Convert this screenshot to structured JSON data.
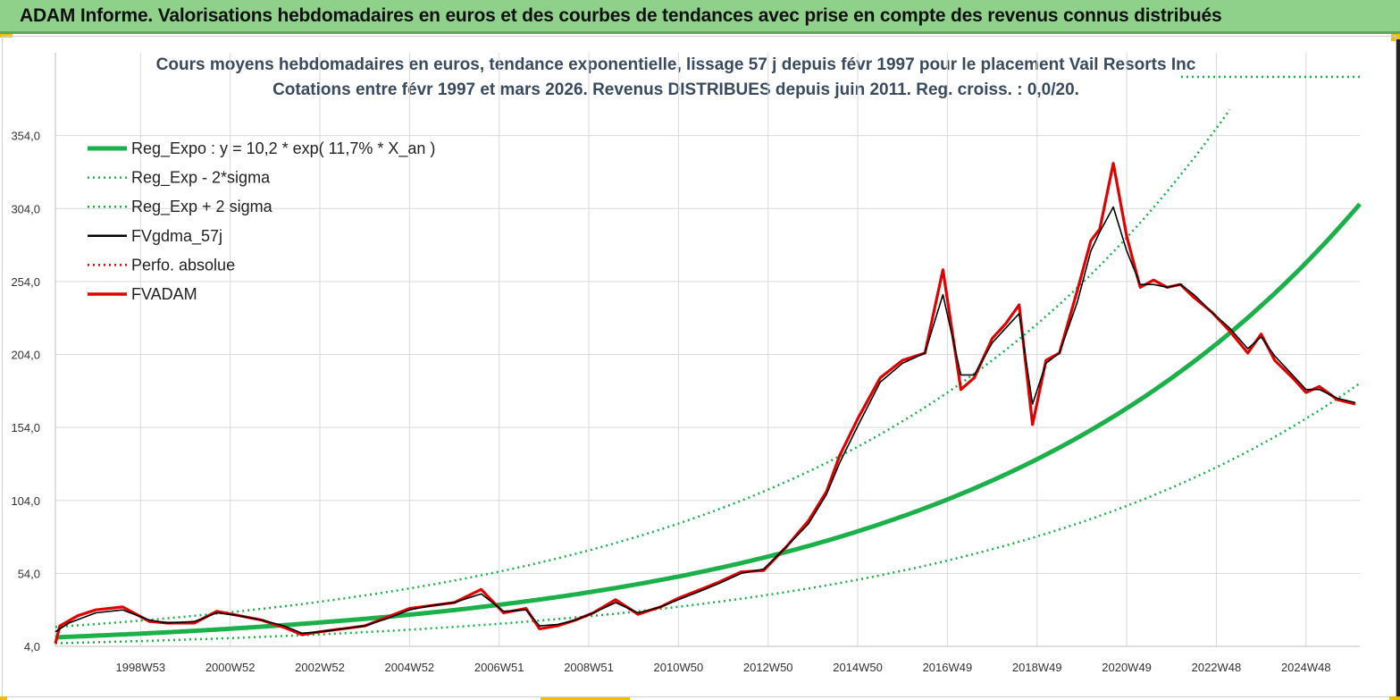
{
  "banner": {
    "title": "ADAM Informe. Valorisations hebdomadaires en euros et des courbes de tendances avec prise en compte des revenus connus distribués"
  },
  "chart_data": {
    "type": "line",
    "title": "Cours moyens hebdomadaires en euros, tendance exponentielle, lissage 57 j depuis févr 1997 pour le placement Vail Resorts Inc",
    "subtitle": "Cotations entre févr 1997 et mars 2026. Revenus DISTRIBUES depuis juin 2011. Reg. croiss. : 0,0/20.",
    "xlabel": "",
    "ylabel": "",
    "xlim": [
      1997.1,
      2026.2
    ],
    "ylim": [
      4,
      374
    ],
    "yticks": [
      4,
      54,
      104,
      154,
      204,
      254,
      304,
      354
    ],
    "ytick_labels": [
      "4,0",
      "54,0",
      "104,0",
      "154,0",
      "204,0",
      "254,0",
      "304,0",
      "354,0"
    ],
    "xticks": [
      1999.0,
      2001.0,
      2003.0,
      2005.0,
      2007.0,
      2009.0,
      2011.0,
      2013.0,
      2015.0,
      2017.0,
      2019.0,
      2021.0,
      2023.0,
      2025.0
    ],
    "xtick_labels": [
      "1998W53",
      "2000W52",
      "2002W52",
      "2004W52",
      "2006W51",
      "2008W51",
      "2010W50",
      "2012W50",
      "2014W50",
      "2016W49",
      "2018W49",
      "2020W49",
      "2022W48",
      "2024W48"
    ],
    "grid": true,
    "legend": [
      {
        "name": "Reg_Expo : y = 10,2 * exp( 11,7% *  X_an )",
        "color": "#1bb04a",
        "style": "thick"
      },
      {
        "name": "Reg_Exp - 2*sigma",
        "color": "#1bb04a",
        "style": "dotted"
      },
      {
        "name": "Reg_Exp + 2 sigma",
        "color": "#1bb04a",
        "style": "dotted"
      },
      {
        "name": "FVgdma_57j",
        "color": "#000000",
        "style": "solid"
      },
      {
        "name": "Perfo. absolue",
        "color": "#e00000",
        "style": "dotted"
      },
      {
        "name": "FVADAM",
        "color": "#e00000",
        "style": "thick"
      }
    ],
    "regression": {
      "a": 10.2,
      "k": 0.117,
      "t0": 1997.1,
      "lower_factor": 0.6,
      "upper_factor": 1.7
    },
    "series": [
      {
        "name": "FVADAM",
        "x": [
          1997.1,
          1997.2,
          1997.6,
          1998.0,
          1998.6,
          1999.2,
          1999.6,
          2000.2,
          2000.7,
          2001.2,
          2001.7,
          2002.2,
          2002.6,
          2003.0,
          2003.5,
          2004.0,
          2004.5,
          2005.0,
          2005.5,
          2006.0,
          2006.6,
          2007.1,
          2007.6,
          2007.9,
          2008.3,
          2008.7,
          2009.1,
          2009.6,
          2010.1,
          2010.6,
          2011.0,
          2011.5,
          2011.9,
          2012.4,
          2012.9,
          2013.4,
          2013.9,
          2014.3,
          2014.6,
          2015.0,
          2015.5,
          2016.0,
          2016.5,
          2016.9,
          2017.3,
          2017.6,
          2018.0,
          2018.3,
          2018.6,
          2018.9,
          2019.2,
          2019.5,
          2019.9,
          2020.2,
          2020.4,
          2020.7,
          2021.0,
          2021.3,
          2021.6,
          2021.9,
          2022.2,
          2022.5,
          2022.9,
          2023.3,
          2023.7,
          2024.0,
          2024.3,
          2024.7,
          2025.0,
          2025.3,
          2025.7,
          2026.1
        ],
        "values": [
          6,
          18,
          25,
          29,
          31,
          21,
          20,
          20,
          28,
          25,
          22,
          17,
          12,
          14,
          16,
          18,
          24,
          30,
          32,
          34,
          43,
          27,
          30,
          16,
          18,
          22,
          27,
          36,
          26,
          31,
          37,
          43,
          48,
          55,
          56,
          72,
          90,
          110,
          135,
          160,
          188,
          200,
          205,
          262,
          180,
          188,
          215,
          225,
          238,
          156,
          200,
          205,
          248,
          282,
          290,
          335,
          285,
          250,
          255,
          250,
          252,
          243,
          233,
          220,
          205,
          218,
          200,
          188,
          178,
          182,
          173,
          170
        ]
      },
      {
        "name": "FVgdma_57j",
        "x": [
          1997.1,
          1997.4,
          1998.0,
          1998.6,
          1999.2,
          1999.6,
          2000.2,
          2000.7,
          2001.2,
          2001.7,
          2002.2,
          2002.6,
          2003.0,
          2003.5,
          2004.0,
          2004.5,
          2005.0,
          2005.5,
          2006.0,
          2006.6,
          2007.1,
          2007.6,
          2007.9,
          2008.3,
          2008.7,
          2009.1,
          2009.6,
          2010.1,
          2010.6,
          2011.0,
          2011.5,
          2011.9,
          2012.4,
          2012.9,
          2013.4,
          2013.9,
          2014.3,
          2014.6,
          2015.0,
          2015.5,
          2016.0,
          2016.5,
          2016.9,
          2017.3,
          2017.6,
          2018.0,
          2018.3,
          2018.6,
          2018.9,
          2019.2,
          2019.5,
          2019.9,
          2020.2,
          2020.4,
          2020.7,
          2021.0,
          2021.3,
          2021.6,
          2021.9,
          2022.2,
          2022.5,
          2022.9,
          2023.3,
          2023.7,
          2024.0,
          2024.3,
          2024.7,
          2025.0,
          2025.3,
          2025.7,
          2026.1
        ],
        "values": [
          14,
          20,
          27,
          29,
          22,
          20,
          21,
          27,
          25,
          22,
          18,
          13,
          14,
          16,
          18,
          23,
          29,
          32,
          34,
          40,
          28,
          29,
          18,
          19,
          22,
          27,
          34,
          27,
          31,
          36,
          42,
          47,
          54,
          57,
          72,
          88,
          108,
          130,
          155,
          185,
          198,
          205,
          245,
          190,
          190,
          212,
          222,
          232,
          170,
          198,
          205,
          240,
          275,
          288,
          305,
          275,
          252,
          252,
          250,
          252,
          245,
          233,
          222,
          208,
          216,
          203,
          190,
          180,
          180,
          174,
          171
        ]
      }
    ]
  }
}
